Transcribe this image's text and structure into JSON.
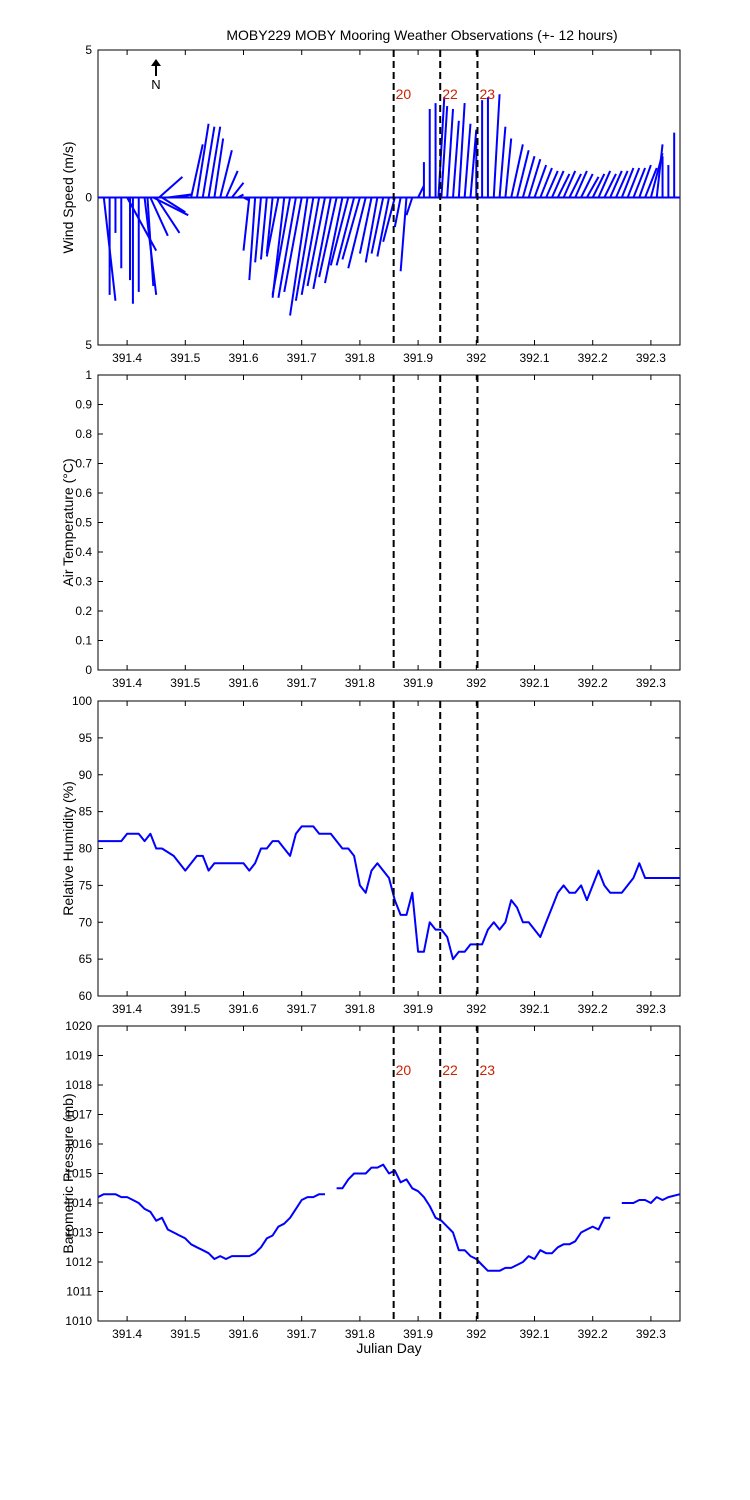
{
  "figure": {
    "title": "MOBY229 MOBY Mooring Weather Observations (+- 12 hours)",
    "north_label": "N"
  },
  "colors": {
    "data_line": "#0000ff",
    "marker_line": "#000000",
    "marker_label": "#cc2200",
    "axis": "#000000"
  },
  "markers": [
    {
      "label": "20",
      "x": 391.858
    },
    {
      "label": "22",
      "x": 391.938
    },
    {
      "label": "23",
      "x": 392.002
    }
  ],
  "chart_data": [
    {
      "type": "vector",
      "name": "wind",
      "ylabel": "Wind Speed (m/s)",
      "xlabel": "",
      "xlim": [
        391.35,
        392.35
      ],
      "ylim": [
        -5,
        5
      ],
      "y_tick_labels": [
        "5",
        "0",
        "5"
      ],
      "x_ticks": [
        "391.4",
        "391.5",
        "391.6",
        "391.7",
        "391.8",
        "391.9",
        "392",
        "392.1",
        "392.2",
        "392.3"
      ],
      "show_markers": true,
      "show_marker_labels": true,
      "vectors": [
        {
          "x": 391.36,
          "u": 0.02,
          "v": -3.5
        },
        {
          "x": 391.37,
          "u": 0.0,
          "v": -3.3
        },
        {
          "x": 391.38,
          "u": 0.0,
          "v": -1.2
        },
        {
          "x": 391.39,
          "u": 0.0,
          "v": -2.4
        },
        {
          "x": 391.4,
          "u": 0.05,
          "v": -1.8
        },
        {
          "x": 391.405,
          "u": 0.0,
          "v": -2.8
        },
        {
          "x": 391.41,
          "u": 0.0,
          "v": -3.6
        },
        {
          "x": 391.42,
          "u": 0.0,
          "v": -3.2
        },
        {
          "x": 391.43,
          "u": 0.02,
          "v": -3.3
        },
        {
          "x": 391.435,
          "u": 0.01,
          "v": -3.0
        },
        {
          "x": 391.44,
          "u": 0.03,
          "v": -1.3
        },
        {
          "x": 391.445,
          "u": 0.06,
          "v": -0.6
        },
        {
          "x": 391.45,
          "u": 0.04,
          "v": -1.2
        },
        {
          "x": 391.455,
          "u": 0.04,
          "v": 0.7
        },
        {
          "x": 391.46,
          "u": 0.04,
          "v": -0.5
        },
        {
          "x": 391.47,
          "u": 0.04,
          "v": 0.1
        },
        {
          "x": 391.48,
          "u": 0.03,
          "v": 0.0
        },
        {
          "x": 391.49,
          "u": 0.02,
          "v": 0.1
        },
        {
          "x": 391.5,
          "u": 0.01,
          "v": 0.0
        },
        {
          "x": 391.51,
          "u": 0.02,
          "v": 1.8
        },
        {
          "x": 391.52,
          "u": 0.02,
          "v": 2.5
        },
        {
          "x": 391.53,
          "u": 0.02,
          "v": 2.4
        },
        {
          "x": 391.54,
          "u": 0.02,
          "v": 2.4
        },
        {
          "x": 391.55,
          "u": 0.015,
          "v": 2.0
        },
        {
          "x": 391.56,
          "u": 0.02,
          "v": 1.6
        },
        {
          "x": 391.57,
          "u": 0.02,
          "v": 0.9
        },
        {
          "x": 391.58,
          "u": 0.02,
          "v": 0.5
        },
        {
          "x": 391.59,
          "u": 0.01,
          "v": 0.1
        },
        {
          "x": 391.6,
          "u": 0.01,
          "v": -0.1
        },
        {
          "x": 391.61,
          "u": -0.01,
          "v": -1.8
        },
        {
          "x": 391.62,
          "u": -0.01,
          "v": -2.8
        },
        {
          "x": 391.63,
          "u": -0.01,
          "v": -2.2
        },
        {
          "x": 391.64,
          "u": -0.01,
          "v": -2.1
        },
        {
          "x": 391.65,
          "u": -0.01,
          "v": -1.9
        },
        {
          "x": 391.66,
          "u": -0.02,
          "v": -2.0
        },
        {
          "x": 391.67,
          "u": -0.02,
          "v": -3.4
        },
        {
          "x": 391.68,
          "u": -0.03,
          "v": -3.3
        },
        {
          "x": 391.69,
          "u": -0.03,
          "v": -3.4
        },
        {
          "x": 391.7,
          "u": -0.03,
          "v": -3.2
        },
        {
          "x": 391.71,
          "u": -0.03,
          "v": -4.0
        },
        {
          "x": 391.72,
          "u": -0.03,
          "v": -3.5
        },
        {
          "x": 391.73,
          "u": -0.03,
          "v": -3.3
        },
        {
          "x": 391.74,
          "u": -0.03,
          "v": -3.0
        },
        {
          "x": 391.75,
          "u": -0.03,
          "v": -3.1
        },
        {
          "x": 391.76,
          "u": -0.03,
          "v": -2.7
        },
        {
          "x": 391.77,
          "u": -0.03,
          "v": -2.9
        },
        {
          "x": 391.78,
          "u": -0.03,
          "v": -2.3
        },
        {
          "x": 391.79,
          "u": -0.03,
          "v": -2.3
        },
        {
          "x": 391.8,
          "u": -0.03,
          "v": -2.1
        },
        {
          "x": 391.81,
          "u": -0.03,
          "v": -2.4
        },
        {
          "x": 391.82,
          "u": -0.02,
          "v": -1.9
        },
        {
          "x": 391.83,
          "u": -0.02,
          "v": -2.2
        },
        {
          "x": 391.84,
          "u": -0.02,
          "v": -1.9
        },
        {
          "x": 391.85,
          "u": -0.02,
          "v": -2.0
        },
        {
          "x": 391.86,
          "u": -0.02,
          "v": -1.5
        },
        {
          "x": 391.87,
          "u": -0.01,
          "v": -1.0
        },
        {
          "x": 391.88,
          "u": -0.01,
          "v": -2.5
        },
        {
          "x": 391.89,
          "u": -0.01,
          "v": -0.6
        },
        {
          "x": 391.9,
          "u": 0.01,
          "v": 0.4
        },
        {
          "x": 391.91,
          "u": 0.0,
          "v": 1.2
        },
        {
          "x": 391.92,
          "u": 0.0,
          "v": 3.0
        },
        {
          "x": 391.93,
          "u": 0.0,
          "v": 3.2
        },
        {
          "x": 391.935,
          "u": 0.01,
          "v": 3.4
        },
        {
          "x": 391.94,
          "u": 0.01,
          "v": 3.1
        },
        {
          "x": 391.95,
          "u": 0.01,
          "v": 3.0
        },
        {
          "x": 391.96,
          "u": 0.01,
          "v": 2.6
        },
        {
          "x": 391.97,
          "u": 0.01,
          "v": 3.2
        },
        {
          "x": 391.98,
          "u": 0.01,
          "v": 2.5
        },
        {
          "x": 391.99,
          "u": 0.01,
          "v": 2.3
        },
        {
          "x": 392.0,
          "u": 0.0,
          "v": 2.0
        },
        {
          "x": 392.01,
          "u": 0.0,
          "v": 3.3
        },
        {
          "x": 392.02,
          "u": 0.0,
          "v": 3.4
        },
        {
          "x": 392.03,
          "u": 0.01,
          "v": 3.5
        },
        {
          "x": 392.04,
          "u": 0.01,
          "v": 2.4
        },
        {
          "x": 392.05,
          "u": 0.01,
          "v": 2.0
        },
        {
          "x": 392.06,
          "u": 0.02,
          "v": 1.8
        },
        {
          "x": 392.07,
          "u": 0.02,
          "v": 1.6
        },
        {
          "x": 392.08,
          "u": 0.02,
          "v": 1.4
        },
        {
          "x": 392.09,
          "u": 0.02,
          "v": 1.3
        },
        {
          "x": 392.1,
          "u": 0.02,
          "v": 1.1
        },
        {
          "x": 392.11,
          "u": 0.02,
          "v": 1.0
        },
        {
          "x": 392.12,
          "u": 0.02,
          "v": 0.9
        },
        {
          "x": 392.13,
          "u": 0.02,
          "v": 0.9
        },
        {
          "x": 392.14,
          "u": 0.02,
          "v": 0.8
        },
        {
          "x": 392.15,
          "u": 0.02,
          "v": 0.9
        },
        {
          "x": 392.16,
          "u": 0.02,
          "v": 0.8
        },
        {
          "x": 392.17,
          "u": 0.02,
          "v": 0.9
        },
        {
          "x": 392.18,
          "u": 0.02,
          "v": 0.8
        },
        {
          "x": 392.19,
          "u": 0.02,
          "v": 0.7
        },
        {
          "x": 392.2,
          "u": 0.02,
          "v": 0.8
        },
        {
          "x": 392.21,
          "u": 0.02,
          "v": 0.9
        },
        {
          "x": 392.22,
          "u": 0.02,
          "v": 0.8
        },
        {
          "x": 392.23,
          "u": 0.02,
          "v": 0.9
        },
        {
          "x": 392.24,
          "u": 0.02,
          "v": 0.9
        },
        {
          "x": 392.25,
          "u": 0.02,
          "v": 1.0
        },
        {
          "x": 392.26,
          "u": 0.02,
          "v": 1.0
        },
        {
          "x": 392.27,
          "u": 0.02,
          "v": 1.0
        },
        {
          "x": 392.28,
          "u": 0.02,
          "v": 1.1
        },
        {
          "x": 392.29,
          "u": 0.02,
          "v": 1.0
        },
        {
          "x": 392.3,
          "u": 0.02,
          "v": 1.5
        },
        {
          "x": 392.31,
          "u": 0.01,
          "v": 1.8
        },
        {
          "x": 392.32,
          "u": 0.0,
          "v": 1.4
        },
        {
          "x": 392.33,
          "u": 0.0,
          "v": 1.1
        },
        {
          "x": 392.34,
          "u": 0.0,
          "v": 2.2
        }
      ]
    },
    {
      "type": "line",
      "name": "airtemp",
      "ylabel": "Air Temperature (°C)",
      "xlabel": "",
      "xlim": [
        391.35,
        392.35
      ],
      "ylim": [
        0,
        1
      ],
      "y_ticks": [
        0,
        0.1,
        0.2,
        0.3,
        0.4,
        0.5,
        0.6,
        0.7,
        0.8,
        0.9,
        1
      ],
      "y_tick_labels": [
        "0",
        "0.1",
        "0.2",
        "0.3",
        "0.4",
        "0.5",
        "0.6",
        "0.7",
        "0.8",
        "0.9",
        "1"
      ],
      "x_ticks": [
        "391.4",
        "391.5",
        "391.6",
        "391.7",
        "391.8",
        "391.9",
        "392",
        "392.1",
        "392.2",
        "392.3"
      ],
      "show_markers": true,
      "show_marker_labels": false,
      "segments": []
    },
    {
      "type": "line",
      "name": "humidity",
      "ylabel": "Relative Humidity (%)",
      "xlabel": "",
      "xlim": [
        391.35,
        392.35
      ],
      "ylim": [
        60,
        100
      ],
      "y_ticks": [
        60,
        65,
        70,
        75,
        80,
        85,
        90,
        95,
        100
      ],
      "y_tick_labels": [
        "60",
        "65",
        "70",
        "75",
        "80",
        "85",
        "90",
        "95",
        "100"
      ],
      "x_ticks": [
        "391.4",
        "391.5",
        "391.6",
        "391.7",
        "391.8",
        "391.9",
        "392",
        "392.1",
        "392.2",
        "392.3"
      ],
      "show_markers": true,
      "show_marker_labels": false,
      "segments": [
        {
          "x": [
            391.35,
            391.38,
            391.39,
            391.4,
            391.42,
            391.43,
            391.44,
            391.45,
            391.46,
            391.48,
            391.5,
            391.51,
            391.52,
            391.53,
            391.54,
            391.55,
            391.56,
            391.58,
            391.59,
            391.6,
            391.61,
            391.62,
            391.63,
            391.64,
            391.65,
            391.66,
            391.67,
            391.68,
            391.69,
            391.7,
            391.71,
            391.72,
            391.73,
            391.74,
            391.75,
            391.76,
            391.77,
            391.78,
            391.79,
            391.8,
            391.81,
            391.82,
            391.83,
            391.84,
            391.85,
            391.86,
            391.87,
            391.88,
            391.89,
            391.9,
            391.91,
            391.92,
            391.93,
            391.94,
            391.95,
            391.96,
            391.97,
            391.98,
            391.99,
            392.0,
            392.01,
            392.02,
            392.03,
            392.04,
            392.05,
            392.06,
            392.07,
            392.08,
            392.09,
            392.1,
            392.11,
            392.12,
            392.13,
            392.14,
            392.15,
            392.16,
            392.17,
            392.18,
            392.19,
            392.2,
            392.21,
            392.22,
            392.23,
            392.24,
            392.25,
            392.26,
            392.27,
            392.28,
            392.29,
            392.3,
            392.31,
            392.32,
            392.33,
            392.35
          ],
          "y": [
            81,
            81,
            81,
            82,
            82,
            81,
            82,
            80,
            80,
            79,
            77,
            78,
            79,
            79,
            77,
            78,
            78,
            78,
            78,
            78,
            77,
            78,
            80,
            80,
            81,
            81,
            80,
            79,
            82,
            83,
            83,
            83,
            82,
            82,
            82,
            81,
            80,
            80,
            79,
            75,
            74,
            77,
            78,
            77,
            76,
            73,
            71,
            71,
            74,
            66,
            66,
            70,
            69,
            69,
            68,
            65,
            66,
            66,
            67,
            67,
            67,
            69,
            70,
            69,
            70,
            73,
            72,
            70,
            70,
            69,
            68,
            70,
            72,
            74,
            75,
            74,
            74,
            75,
            73,
            75,
            77,
            75,
            74,
            74,
            74,
            75,
            76,
            78,
            76,
            76,
            76,
            76,
            76,
            76
          ]
        }
      ]
    },
    {
      "type": "line",
      "name": "pressure",
      "ylabel": "Barometric Pressure (mb)",
      "xlabel": "Julian Day",
      "xlim": [
        391.35,
        392.35
      ],
      "ylim": [
        1010,
        1020
      ],
      "y_ticks": [
        1010,
        1011,
        1012,
        1013,
        1014,
        1015,
        1016,
        1017,
        1018,
        1019,
        1020
      ],
      "y_tick_labels": [
        "1010",
        "1011",
        "1012",
        "1013",
        "1014",
        "1015",
        "1016",
        "1017",
        "1018",
        "1019",
        "1020"
      ],
      "x_ticks": [
        "391.4",
        "391.5",
        "391.6",
        "391.7",
        "391.8",
        "391.9",
        "392",
        "392.1",
        "392.2",
        "392.3"
      ],
      "show_markers": true,
      "show_marker_labels": true,
      "segments": [
        {
          "x": [
            391.35,
            391.36,
            391.37,
            391.38,
            391.39,
            391.4,
            391.41,
            391.42,
            391.43,
            391.44,
            391.45,
            391.46,
            391.47,
            391.48,
            391.49,
            391.5,
            391.51,
            391.52,
            391.53,
            391.54,
            391.55,
            391.56,
            391.57,
            391.58,
            391.59,
            391.6,
            391.61,
            391.62,
            391.63,
            391.64,
            391.65,
            391.66,
            391.67,
            391.68,
            391.69,
            391.7,
            391.71,
            391.72,
            391.73,
            391.74
          ],
          "y": [
            1014.2,
            1014.3,
            1014.3,
            1014.3,
            1014.2,
            1014.2,
            1014.1,
            1014.0,
            1013.8,
            1013.7,
            1013.4,
            1013.5,
            1013.1,
            1013.0,
            1012.9,
            1012.8,
            1012.6,
            1012.5,
            1012.4,
            1012.3,
            1012.1,
            1012.2,
            1012.1,
            1012.2,
            1012.2,
            1012.2,
            1012.2,
            1012.3,
            1012.5,
            1012.8,
            1012.9,
            1013.2,
            1013.3,
            1013.5,
            1013.8,
            1014.1,
            1014.2,
            1014.2,
            1014.3,
            1014.3
          ]
        },
        {
          "x": [
            391.76,
            391.77,
            391.78,
            391.79,
            391.8,
            391.81,
            391.82,
            391.83,
            391.84,
            391.85,
            391.86,
            391.87,
            391.88,
            391.89,
            391.9,
            391.91,
            391.92,
            391.93,
            391.94,
            391.95,
            391.96,
            391.97,
            391.98,
            391.99,
            392.0,
            392.01,
            392.02,
            392.03,
            392.04,
            392.05,
            392.06,
            392.07,
            392.08,
            392.09,
            392.1,
            392.11,
            392.12,
            392.13,
            392.14,
            392.15,
            392.16,
            392.17,
            392.18,
            392.19,
            392.2,
            392.21,
            392.22,
            392.23
          ],
          "y": [
            1014.5,
            1014.5,
            1014.8,
            1015.0,
            1015.0,
            1015.0,
            1015.2,
            1015.2,
            1015.3,
            1015.0,
            1015.1,
            1014.7,
            1014.8,
            1014.5,
            1014.4,
            1014.2,
            1013.9,
            1013.5,
            1013.4,
            1013.2,
            1013.0,
            1012.4,
            1012.4,
            1012.2,
            1012.1,
            1011.9,
            1011.7,
            1011.7,
            1011.7,
            1011.8,
            1011.8,
            1011.9,
            1012.0,
            1012.2,
            1012.1,
            1012.4,
            1012.3,
            1012.3,
            1012.5,
            1012.6,
            1012.6,
            1012.7,
            1013.0,
            1013.1,
            1013.2,
            1013.1,
            1013.5,
            1013.5
          ]
        },
        {
          "x": [
            392.25,
            392.26,
            392.27,
            392.28,
            392.29,
            392.3,
            392.31,
            392.32,
            392.33,
            392.35
          ],
          "y": [
            1014.0,
            1014.0,
            1014.0,
            1014.1,
            1014.1,
            1014.0,
            1014.2,
            1014.1,
            1014.2,
            1014.3
          ]
        }
      ]
    }
  ]
}
